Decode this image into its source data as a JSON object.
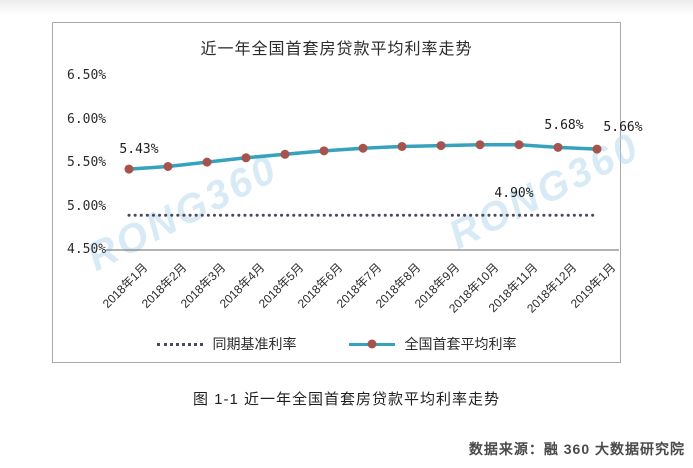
{
  "page": {
    "caption": "图 1-1 近一年全国首套房贷款平均利率走势",
    "source": "数据来源：融 360 大数据研究院"
  },
  "watermark": {
    "text": "RONG360",
    "color": "#a8d2ea"
  },
  "colors": {
    "main_line": "#35a3bd",
    "marker": "#a6524d",
    "benchmark_dots": "#4a4a5c",
    "axis": "#666666",
    "box_border": "#a9a9a9"
  },
  "chart_data": {
    "type": "line",
    "title": "近一年全国首套房贷款平均利率走势",
    "categories": [
      "2018年1月",
      "2018年2月",
      "2018年3月",
      "2018年4月",
      "2018年5月",
      "2018年6月",
      "2018年7月",
      "2018年8月",
      "2018年9月",
      "2018年10月",
      "2018年11月",
      "2018年12月",
      "2019年1月"
    ],
    "series": [
      {
        "name": "同期基准利率",
        "style": "dotted",
        "color": "#4a4a5c",
        "values": [
          4.9,
          4.9,
          4.9,
          4.9,
          4.9,
          4.9,
          4.9,
          4.9,
          4.9,
          4.9,
          4.9,
          4.9,
          4.9
        ]
      },
      {
        "name": "全国首套平均利率",
        "style": "line-markers",
        "color": "#35a3bd",
        "marker_color": "#a6524d",
        "values": [
          5.43,
          5.46,
          5.51,
          5.56,
          5.6,
          5.64,
          5.67,
          5.69,
          5.7,
          5.71,
          5.71,
          5.68,
          5.66
        ]
      }
    ],
    "y_ticks": [
      "6.50%",
      "6.00%",
      "5.50%",
      "5.00%",
      "4.50%"
    ],
    "ylim": [
      4.5,
      6.5
    ],
    "grid": false,
    "legend_position": "bottom",
    "annotations": [
      {
        "text": "5.43%",
        "point_index": 0
      },
      {
        "text": "5.68%",
        "point_index": 11
      },
      {
        "text": "5.66%",
        "point_index": 12
      },
      {
        "text": "4.90%",
        "target": "benchmark"
      }
    ]
  }
}
